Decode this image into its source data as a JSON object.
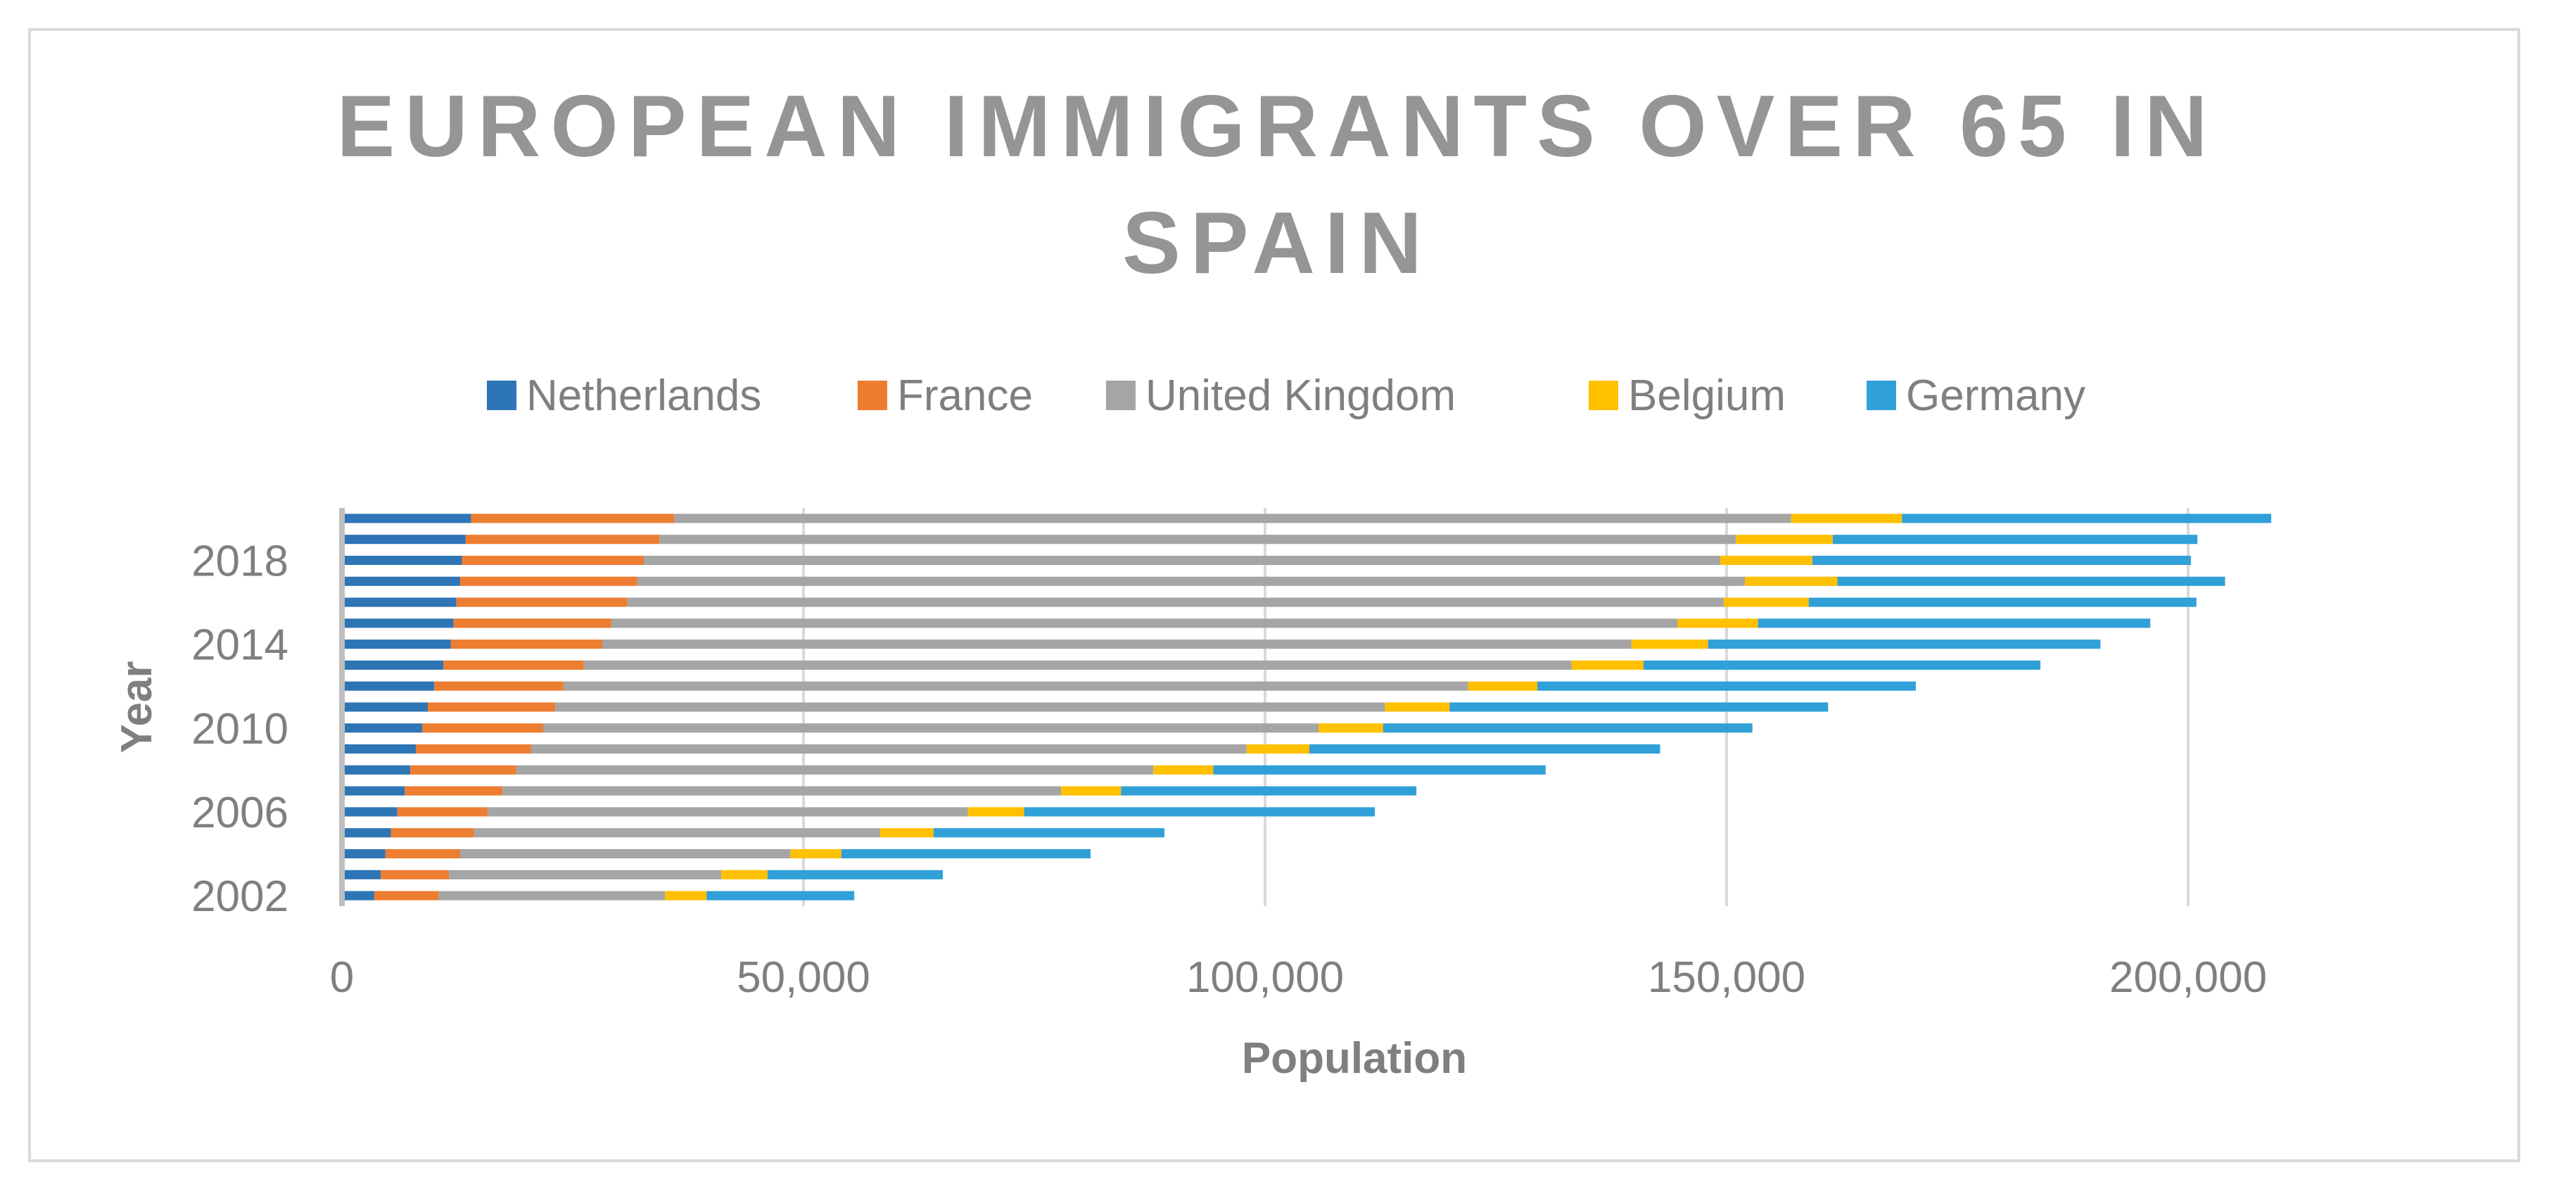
{
  "chart_data": {
    "type": "bar",
    "orientation": "horizontal",
    "stacked": true,
    "title": "EUROPEAN IMMIGRANTS OVER 65 IN SPAIN",
    "title_lines": [
      "EUROPEAN IMMIGRANTS OVER 65 IN",
      "SPAIN"
    ],
    "xlabel": "Population",
    "ylabel": "Year",
    "xlim": [
      0,
      240000
    ],
    "x_ticks": [
      0,
      50000,
      100000,
      150000,
      200000
    ],
    "x_tick_labels": [
      "0",
      "50,000",
      "100,000",
      "150,000",
      "200,000"
    ],
    "y_tick_labels": [
      "2002",
      "2006",
      "2010",
      "2014",
      "2018"
    ],
    "legend_position": "top",
    "grid": true,
    "categories": [
      "2002",
      "2003",
      "2004",
      "2005",
      "2006",
      "2007",
      "2008",
      "2009",
      "2010",
      "2011",
      "2012",
      "2013",
      "2014",
      "2015",
      "2016",
      "2017",
      "2018",
      "2019",
      "2020"
    ],
    "series": [
      {
        "name": "Netherlands",
        "color": "#2e75b6",
        "values": [
          3500,
          4200,
          4700,
          5300,
          6000,
          6800,
          7400,
          8000,
          8700,
          9300,
          10000,
          11000,
          11800,
          12100,
          12400,
          12800,
          13000,
          13400,
          14000
        ]
      },
      {
        "name": "France",
        "color": "#ed7d31",
        "values": [
          7000,
          7400,
          8100,
          9000,
          9800,
          10600,
          11500,
          12500,
          13100,
          13800,
          14000,
          15200,
          16400,
          17100,
          18500,
          19200,
          19700,
          21000,
          22000
        ]
      },
      {
        "name": "United Kingdom",
        "color": "#a5a5a5",
        "values": [
          24500,
          29500,
          35800,
          44000,
          52000,
          60500,
          69000,
          77500,
          84000,
          89900,
          98000,
          107000,
          111500,
          115500,
          118800,
          120000,
          116600,
          116600,
          121000
        ]
      },
      {
        "name": "Belgium",
        "color": "#ffc000",
        "values": [
          4500,
          5000,
          5500,
          5800,
          6100,
          6500,
          6500,
          6800,
          7000,
          7000,
          7500,
          7800,
          8300,
          8700,
          9200,
          10000,
          10000,
          10500,
          12000
        ]
      },
      {
        "name": "Germany",
        "color": "#31a0d8",
        "values": [
          16000,
          19000,
          27000,
          25000,
          38000,
          32000,
          36000,
          38000,
          40000,
          41000,
          41000,
          43000,
          42500,
          42500,
          42000,
          42000,
          41000,
          39500,
          40000
        ]
      }
    ]
  }
}
